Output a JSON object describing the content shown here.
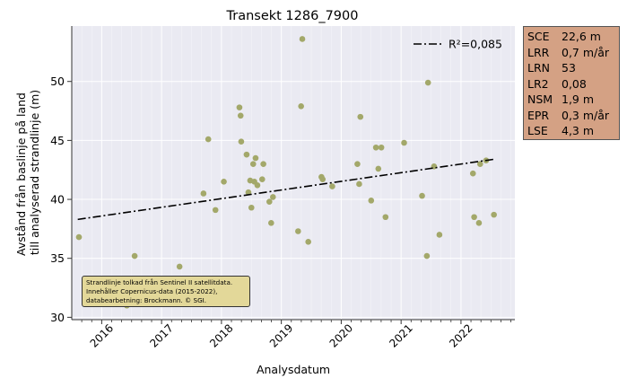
{
  "chart_data": {
    "type": "scatter",
    "title": "Transekt 1286_7900",
    "xlabel": "Analysdatum",
    "ylabel_lines": [
      "Avstånd från baslinje på land",
      "till analyserad strandlinje (m)"
    ],
    "x_ticks": [
      "2016",
      "2017",
      "2018",
      "2019",
      "2020",
      "2021",
      "2022"
    ],
    "y_ticks": [
      "30",
      "35",
      "40",
      "45",
      "50"
    ],
    "xlim": [
      2015.5,
      2022.9
    ],
    "ylim": [
      29.8,
      54.7
    ],
    "grid": true,
    "point_color": "#a3a86a",
    "points": [
      {
        "x": 2015.62,
        "y": 36.8
      },
      {
        "x": 2016.35,
        "y": 31.6
      },
      {
        "x": 2016.38,
        "y": 31.2
      },
      {
        "x": 2016.42,
        "y": 31.0
      },
      {
        "x": 2016.55,
        "y": 35.2
      },
      {
        "x": 2017.3,
        "y": 34.3
      },
      {
        "x": 2017.7,
        "y": 40.5
      },
      {
        "x": 2017.78,
        "y": 45.1
      },
      {
        "x": 2017.9,
        "y": 39.1
      },
      {
        "x": 2018.04,
        "y": 41.5
      },
      {
        "x": 2018.3,
        "y": 47.8
      },
      {
        "x": 2018.32,
        "y": 47.1
      },
      {
        "x": 2018.33,
        "y": 44.9
      },
      {
        "x": 2018.42,
        "y": 43.8
      },
      {
        "x": 2018.45,
        "y": 40.6
      },
      {
        "x": 2018.48,
        "y": 41.6
      },
      {
        "x": 2018.5,
        "y": 39.3
      },
      {
        "x": 2018.53,
        "y": 43.0
      },
      {
        "x": 2018.55,
        "y": 41.5
      },
      {
        "x": 2018.57,
        "y": 43.5
      },
      {
        "x": 2018.6,
        "y": 41.2
      },
      {
        "x": 2018.68,
        "y": 41.7
      },
      {
        "x": 2018.7,
        "y": 43.0
      },
      {
        "x": 2018.8,
        "y": 39.8
      },
      {
        "x": 2018.83,
        "y": 38.0
      },
      {
        "x": 2018.86,
        "y": 40.2
      },
      {
        "x": 2019.28,
        "y": 37.3
      },
      {
        "x": 2019.33,
        "y": 47.9
      },
      {
        "x": 2019.35,
        "y": 53.6
      },
      {
        "x": 2019.45,
        "y": 36.4
      },
      {
        "x": 2019.67,
        "y": 41.9
      },
      {
        "x": 2019.69,
        "y": 41.7
      },
      {
        "x": 2019.85,
        "y": 41.1
      },
      {
        "x": 2020.27,
        "y": 43.0
      },
      {
        "x": 2020.3,
        "y": 41.3
      },
      {
        "x": 2020.32,
        "y": 47.0
      },
      {
        "x": 2020.5,
        "y": 39.9
      },
      {
        "x": 2020.58,
        "y": 44.4
      },
      {
        "x": 2020.62,
        "y": 42.6
      },
      {
        "x": 2020.67,
        "y": 44.4
      },
      {
        "x": 2020.74,
        "y": 38.5
      },
      {
        "x": 2021.05,
        "y": 44.8
      },
      {
        "x": 2021.35,
        "y": 40.3
      },
      {
        "x": 2021.43,
        "y": 35.2
      },
      {
        "x": 2021.45,
        "y": 49.9
      },
      {
        "x": 2021.55,
        "y": 42.8
      },
      {
        "x": 2021.64,
        "y": 37.0
      },
      {
        "x": 2022.2,
        "y": 42.2
      },
      {
        "x": 2022.22,
        "y": 38.5
      },
      {
        "x": 2022.3,
        "y": 38.0
      },
      {
        "x": 2022.32,
        "y": 43.0
      },
      {
        "x": 2022.42,
        "y": 43.3
      },
      {
        "x": 2022.55,
        "y": 38.7
      }
    ],
    "trend": {
      "label": "R²=0,085",
      "x": [
        2015.6,
        2022.55
      ],
      "y": [
        38.3,
        43.4
      ],
      "color": "#000000",
      "style": "dash-dot"
    },
    "legend_position": "upper-right"
  },
  "stats": [
    {
      "key": "SCE",
      "value": "22,6 m"
    },
    {
      "key": "LRR",
      "value": "0,7 m/år"
    },
    {
      "key": "LRN",
      "value": "53"
    },
    {
      "key": "LR2",
      "value": "0,08"
    },
    {
      "key": "NSM",
      "value": "1,9 m"
    },
    {
      "key": "EPR",
      "value": "0,3 m/år"
    },
    {
      "key": "LSE",
      "value": "4,3 m"
    }
  ],
  "stats_color": "#d4a184",
  "note_lines": [
    "Strandlinje tolkad från Sentinel II satellitdata.",
    "Innehåller Copernicus-data (2015-2022),",
    "databearbetning: Brockmann. © SGI."
  ],
  "note_color": "#e3d899"
}
